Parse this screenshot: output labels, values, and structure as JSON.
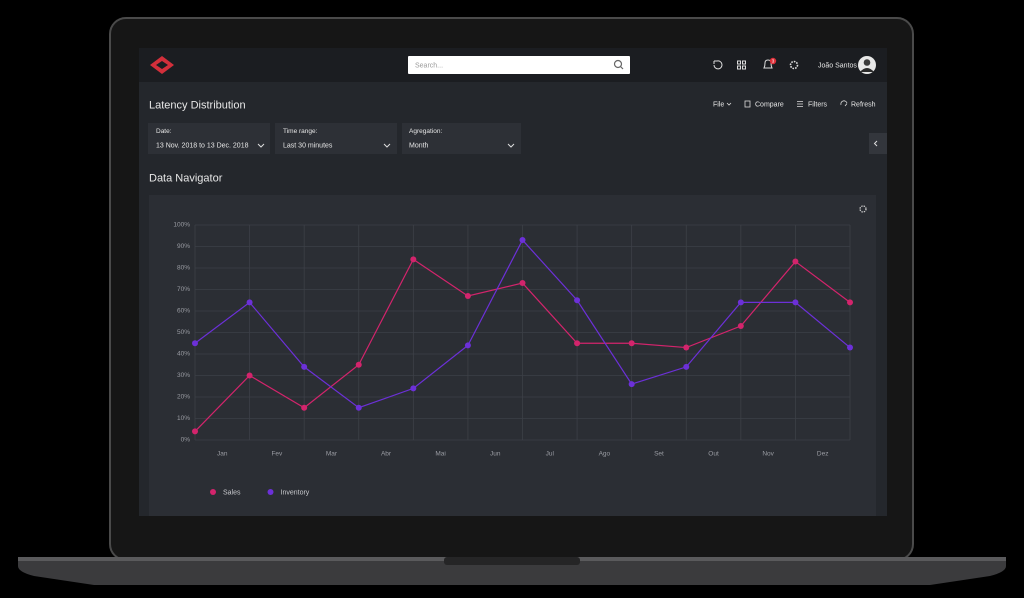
{
  "header": {
    "search_placeholder": "Search...",
    "notification_count": 3,
    "user_name": "João Santos"
  },
  "toolbar": {
    "title": "Latency Distribution",
    "actions": [
      "File",
      "Compare",
      "Filters",
      "Refresh"
    ]
  },
  "filters": [
    {
      "label": "Date:",
      "value": "13 Nov. 2018 to 13 Dec. 2018"
    },
    {
      "label": "Time range:",
      "value": "Last 30 minutes"
    },
    {
      "label": "Agregation:",
      "value": "Month"
    }
  ],
  "chart_data": {
    "type": "line",
    "title": "Data Navigator",
    "x": [
      0,
      1,
      2,
      3,
      4,
      5,
      6,
      7,
      8,
      9,
      10,
      11,
      12
    ],
    "xlim": [
      0,
      12
    ],
    "xticks": [
      {
        "value": 0.5,
        "label": "Jan"
      },
      {
        "value": 1.5,
        "label": "Fev"
      },
      {
        "value": 2.5,
        "label": "Mar"
      },
      {
        "value": 3.5,
        "label": "Abr"
      },
      {
        "value": 4.5,
        "label": "Mai"
      },
      {
        "value": 5.5,
        "label": "Jun"
      },
      {
        "value": 6.5,
        "label": "Jul"
      },
      {
        "value": 7.5,
        "label": "Ago"
      },
      {
        "value": 8.5,
        "label": "Set"
      },
      {
        "value": 9.5,
        "label": "Out"
      },
      {
        "value": 10.5,
        "label": "Nov"
      },
      {
        "value": 11.5,
        "label": "Dez"
      }
    ],
    "ylim": [
      0,
      100
    ],
    "yticks": [
      {
        "value": 0,
        "label": "0%"
      },
      {
        "value": 10,
        "label": "10%"
      },
      {
        "value": 20,
        "label": "20%"
      },
      {
        "value": 30,
        "label": "30%"
      },
      {
        "value": 40,
        "label": "40%"
      },
      {
        "value": 50,
        "label": "50%"
      },
      {
        "value": 60,
        "label": "60%"
      },
      {
        "value": 70,
        "label": "70%"
      },
      {
        "value": 80,
        "label": "80%"
      },
      {
        "value": 90,
        "label": "90%"
      },
      {
        "value": 100,
        "label": "100%"
      }
    ],
    "grid": true,
    "series": [
      {
        "name": "Sales",
        "color": "#d3246c",
        "values": [
          4,
          30,
          15,
          35,
          84,
          67,
          73,
          45,
          45,
          43,
          53,
          83,
          64
        ]
      },
      {
        "name": "Inventory",
        "color": "#6c30d8",
        "values": [
          45,
          64,
          34,
          15,
          24,
          44,
          93,
          65,
          26,
          34,
          64,
          64,
          43
        ]
      }
    ]
  }
}
